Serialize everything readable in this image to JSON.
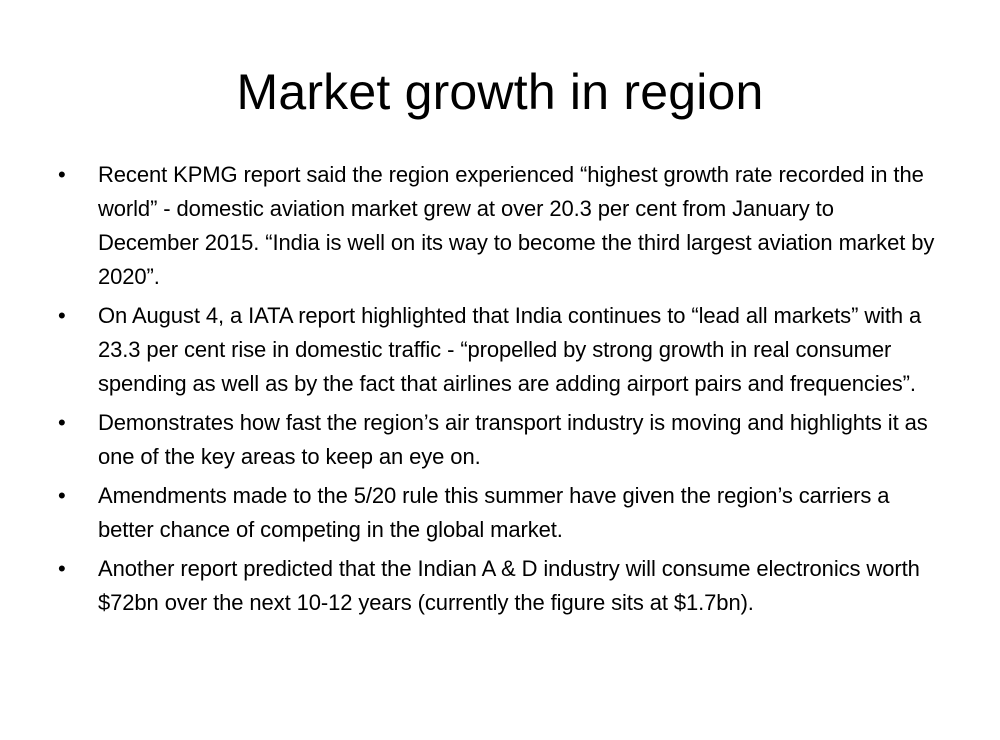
{
  "slide": {
    "title": "Market growth in region",
    "bullet_glyph": "•",
    "bullets": [
      "Recent KPMG report said the region experienced “highest growth rate recorded in the world” - domestic aviation market grew at over 20.3 per cent from January to December 2015. “India is well on its way to become the third largest aviation market by 2020”.",
      "On August 4, a IATA report highlighted that India continues to “lead all markets” with a 23.3 per cent rise in domestic traffic - “propelled by strong growth in real consumer spending as well as by the fact that airlines are adding airport pairs and frequencies”.",
      "Demonstrates how fast the region’s air transport industry is moving and highlights it as one of the key areas to keep an eye on.",
      "Amendments made to the 5/20 rule this summer have given the region’s carriers a better chance of competing in the global market.",
      "Another report predicted that the Indian A & D industry will consume electronics worth $72bn over the next 10-12 years (currently the figure sits at $1.7bn)."
    ]
  }
}
